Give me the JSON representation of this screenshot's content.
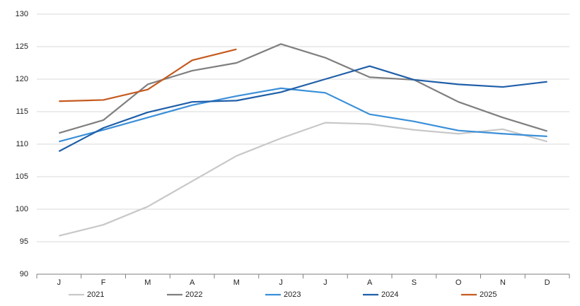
{
  "chart_data": {
    "type": "line",
    "categories": [
      "J",
      "F",
      "M",
      "A",
      "M",
      "J",
      "J",
      "A",
      "S",
      "O",
      "N",
      "D"
    ],
    "series": [
      {
        "name": "2021",
        "color": "#c8c8c8",
        "values": [
          95.9,
          97.6,
          100.4,
          104.3,
          108.2,
          110.9,
          113.3,
          113.1,
          112.2,
          111.6,
          112.3,
          110.4
        ]
      },
      {
        "name": "2022",
        "color": "#7f7f7f",
        "values": [
          111.7,
          113.7,
          119.2,
          121.3,
          122.5,
          125.4,
          123.3,
          120.3,
          119.9,
          116.5,
          114.1,
          112.0
        ]
      },
      {
        "name": "2023",
        "color": "#3a8fd9",
        "values": [
          110.4,
          112.2,
          114.1,
          116.0,
          117.4,
          118.6,
          117.9,
          114.6,
          113.5,
          112.1,
          111.6,
          111.2
        ]
      },
      {
        "name": "2024",
        "color": "#1f5fa8",
        "values": [
          108.9,
          112.5,
          114.9,
          116.5,
          116.7,
          118.0,
          120.0,
          122.0,
          119.9,
          119.2,
          118.8,
          119.6
        ]
      },
      {
        "name": "2025",
        "color": "#c55a1f",
        "values": [
          116.6,
          116.8,
          118.4,
          122.9,
          124.6,
          null,
          null,
          null,
          null,
          null,
          null,
          null
        ]
      }
    ],
    "ylim": [
      90,
      130
    ],
    "yticks": [
      90,
      95,
      100,
      105,
      110,
      115,
      120,
      125,
      130
    ],
    "grid": true,
    "legend": "bottom"
  }
}
